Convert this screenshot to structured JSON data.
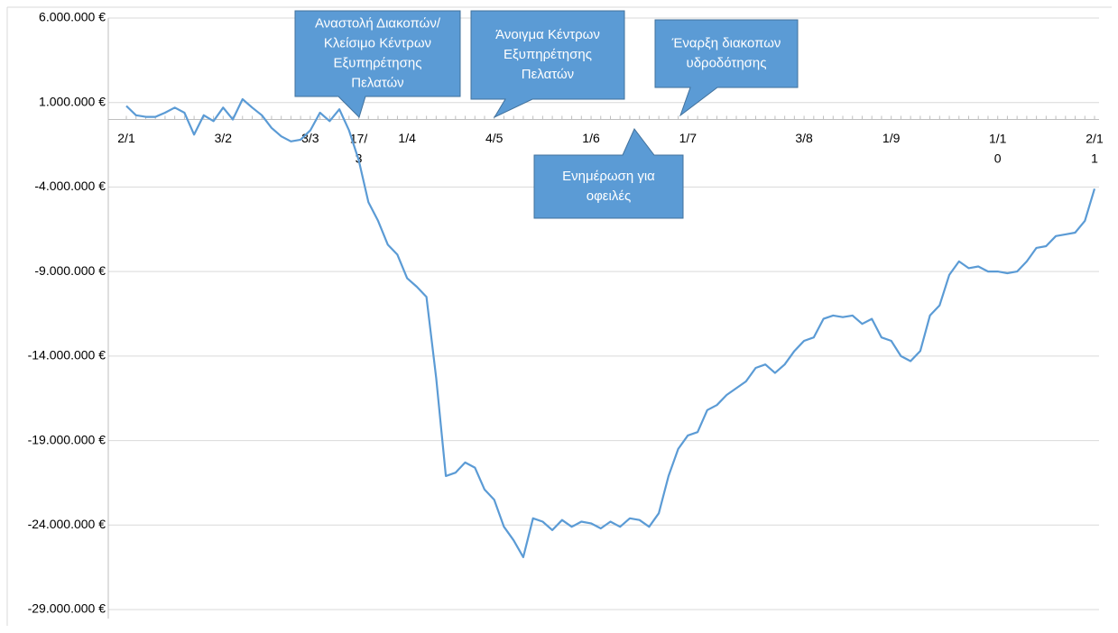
{
  "chart_data": {
    "type": "line",
    "categories": [
      "2/1",
      null,
      null,
      null,
      null,
      null,
      null,
      null,
      null,
      null,
      "3/2",
      null,
      null,
      null,
      null,
      null,
      null,
      null,
      null,
      "3/3",
      null,
      null,
      null,
      null,
      "17/3",
      null,
      null,
      null,
      null,
      "1/4",
      null,
      null,
      null,
      null,
      null,
      null,
      null,
      null,
      "4/5",
      null,
      null,
      null,
      null,
      null,
      null,
      null,
      null,
      null,
      "1/6",
      null,
      null,
      null,
      null,
      null,
      null,
      null,
      null,
      null,
      "1/7",
      null,
      null,
      null,
      null,
      null,
      null,
      null,
      null,
      null,
      null,
      null,
      "3/8",
      null,
      null,
      null,
      null,
      null,
      null,
      null,
      null,
      "1/9",
      null,
      null,
      null,
      null,
      null,
      null,
      null,
      null,
      null,
      null,
      "1/10",
      null,
      null,
      null,
      null,
      null,
      null,
      null,
      null,
      null,
      "2/11"
    ],
    "series": [
      {
        "color": "#5b9bd5",
        "values": [
          800000,
          250000,
          150000,
          150000,
          400000,
          700000,
          400000,
          -900000,
          250000,
          -100000,
          700000,
          0,
          1200000,
          700000,
          250000,
          -500000,
          -1000000,
          -1300000,
          -1200000,
          -650000,
          400000,
          -100000,
          600000,
          -650000,
          -2400000,
          -4900000,
          -6000000,
          -7400000,
          -8000000,
          -9400000,
          -9900000,
          -10500000,
          -15300000,
          -21100000,
          -20900000,
          -20300000,
          -20600000,
          -21900000,
          -22500000,
          -24100000,
          -24900000,
          -25900000,
          -23600000,
          -23800000,
          -24300000,
          -23700000,
          -24100000,
          -23800000,
          -23900000,
          -24200000,
          -23800000,
          -24100000,
          -23600000,
          -23700000,
          -24100000,
          -23300000,
          -21100000,
          -19500000,
          -18700000,
          -18500000,
          -17200000,
          -16900000,
          -16300000,
          -15900000,
          -15500000,
          -14700000,
          -14500000,
          -15000000,
          -14500000,
          -13700000,
          -13100000,
          -12900000,
          -11800000,
          -11600000,
          -11700000,
          -11600000,
          -12100000,
          -11800000,
          -12900000,
          -13100000,
          -14000000,
          -14300000,
          -13700000,
          -11600000,
          -11000000,
          -9200000,
          -8400000,
          -8800000,
          -8700000,
          -9000000,
          -9000000,
          -9100000,
          -9000000,
          -8400000,
          -7600000,
          -7500000,
          -6900000,
          -6800000,
          -6700000,
          -6000000,
          -4100000
        ]
      }
    ],
    "ylim": [
      -29000000,
      6000000
    ],
    "yticks": [
      {
        "value": 6000000,
        "label": "6.000.000 €"
      },
      {
        "value": 1000000,
        "label": "1.000.000 €"
      },
      {
        "value": -4000000,
        "label": "-4.000.000 €"
      },
      {
        "value": -9000000,
        "label": "-9.000.000 €"
      },
      {
        "value": -14000000,
        "label": "-14.000.000 €"
      },
      {
        "value": -19000000,
        "label": "-19.000.000 €"
      },
      {
        "value": -24000000,
        "label": "-24.000.000 €"
      },
      {
        "value": -29000000,
        "label": "-29.000.000 €"
      }
    ],
    "grid": true,
    "annotations": [
      {
        "lines": [
          "Αναστολή Διακοπών/",
          "Κλείσιμο Κέντρων",
          "Εξυπηρέτησης",
          "Πελατών"
        ]
      },
      {
        "lines": [
          "Άνοιγμα Κέντρων",
          "Εξυπηρέτησης",
          "Πελατών"
        ]
      },
      {
        "lines": [
          "Έναρξη διακοπων",
          "υδροδότησης"
        ]
      },
      {
        "lines": [
          "Ενημέρωση για",
          "οφειλές"
        ]
      }
    ]
  }
}
